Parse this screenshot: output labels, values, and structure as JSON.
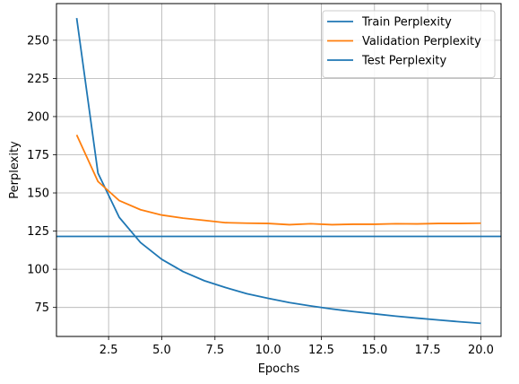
{
  "chart_data": {
    "type": "line",
    "title": "",
    "xlabel": "Epochs",
    "ylabel": "Perplexity",
    "xlim": [
      0.05,
      20.95
    ],
    "ylim": [
      56.0,
      274.0
    ],
    "x_ticks": [
      2.5,
      5.0,
      7.5,
      10.0,
      12.5,
      15.0,
      17.5,
      20.0
    ],
    "x_tick_labels": [
      "2.5",
      "5.0",
      "7.5",
      "10.0",
      "12.5",
      "15.0",
      "17.5",
      "20.0"
    ],
    "y_ticks": [
      75,
      100,
      125,
      150,
      175,
      200,
      225,
      250
    ],
    "y_tick_labels": [
      "75",
      "100",
      "125",
      "150",
      "175",
      "200",
      "225",
      "250"
    ],
    "grid": true,
    "legend_position": "top-right",
    "x": [
      1,
      2,
      3,
      4,
      5,
      6,
      7,
      8,
      9,
      10,
      11,
      12,
      13,
      14,
      15,
      16,
      17,
      18,
      19,
      20
    ],
    "series": [
      {
        "name": "Train Perplexity",
        "color": "#1f77b4",
        "values": [
          264.5,
          163.0,
          134.0,
          117.5,
          106.5,
          98.5,
          92.5,
          88.0,
          84.0,
          81.0,
          78.2,
          76.0,
          74.0,
          72.3,
          70.8,
          69.3,
          68.0,
          66.8,
          65.6,
          64.6
        ]
      },
      {
        "name": "Validation Perplexity",
        "color": "#ff7f0e",
        "values": [
          188.0,
          157.5,
          145.0,
          139.0,
          135.5,
          133.5,
          132.0,
          130.5,
          130.2,
          130.0,
          129.2,
          129.8,
          129.2,
          129.5,
          129.5,
          129.8,
          129.7,
          130.0,
          130.0,
          130.2
        ]
      },
      {
        "name": "Test Perplexity",
        "color": "#1f77b4",
        "type": "hline",
        "value": 121.5
      }
    ]
  }
}
